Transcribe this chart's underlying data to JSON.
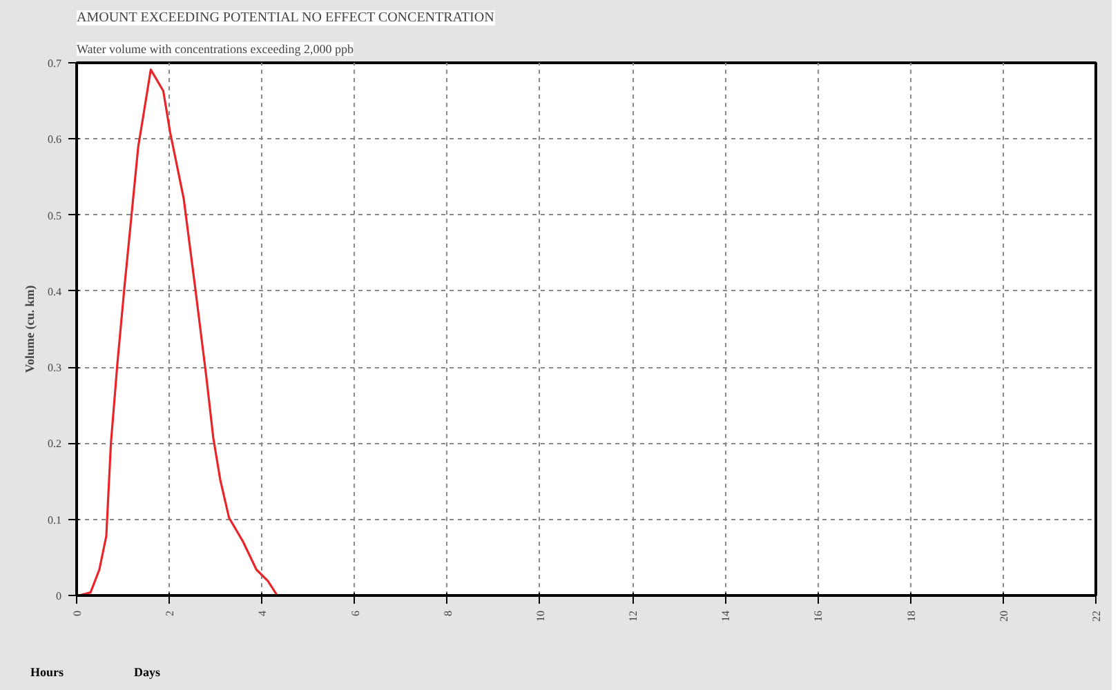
{
  "chart_data": {
    "type": "line",
    "title": "AMOUNT EXCEEDING POTENTIAL NO EFFECT CONCENTRATION",
    "subtitle": "Water volume with concentrations exceeding 2,000 ppb",
    "ylabel": "Volume (cu. km)",
    "annotations": [
      "Hours",
      "Days"
    ],
    "series": [
      {
        "color": "#e8262a",
        "x": [
          0.05,
          0.3,
          0.49,
          0.64,
          0.74,
          0.88,
          1.03,
          1.18,
          1.33,
          1.43,
          1.6,
          1.87,
          2.02,
          2.31,
          2.56,
          2.8,
          2.95,
          3.1,
          3.29,
          3.59,
          3.88,
          4.13,
          4.33
        ],
        "values": [
          0,
          0.004,
          0.034,
          0.078,
          0.2,
          0.305,
          0.404,
          0.497,
          0.59,
          0.627,
          0.691,
          0.663,
          0.608,
          0.522,
          0.404,
          0.287,
          0.207,
          0.152,
          0.102,
          0.071,
          0.034,
          0.019,
          0
        ]
      }
    ],
    "xlim": [
      0,
      22
    ],
    "xticks": [
      0,
      2,
      4,
      6,
      8,
      10,
      12,
      14,
      16,
      18,
      20,
      22
    ],
    "ylim": [
      0,
      0.7
    ],
    "yticks": [
      0,
      0.1,
      0.2,
      0.3,
      0.4,
      0.5,
      0.6,
      0.7
    ],
    "grid": true,
    "line_style": "solid"
  }
}
